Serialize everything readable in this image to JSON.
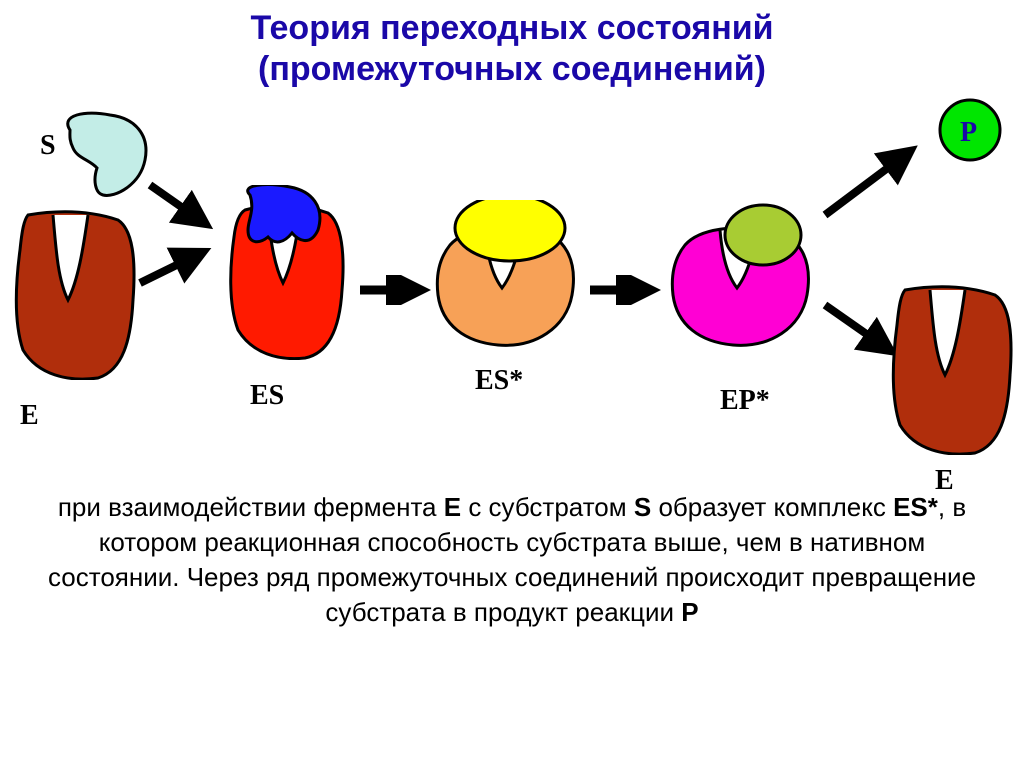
{
  "title": {
    "line1": "Теория переходных состояний",
    "line2": "(промежуточных соединений)",
    "color": "#1a08a8",
    "fontsize": 34
  },
  "labels": {
    "S": "S",
    "E1": "E",
    "ES": "ES",
    "ESstar": "ES*",
    "EPstar": "EP*",
    "E2": "E",
    "P": "P",
    "fontsize": 28,
    "color": "#000000"
  },
  "shapes": {
    "enzyme_brown": "#b02e0c",
    "enzyme_red": "#ff1a00",
    "enzyme_orange": "#f7a157",
    "enzyme_magenta": "#ff00d4",
    "substrate_cyan": "#c3ede7",
    "substrate_blue": "#1a1aff",
    "substrate_yellow": "#ffff00",
    "substrate_olive": "#a8cc33",
    "product_green": "#00e600",
    "stroke": "#000000"
  },
  "arrows": {
    "color": "#000000",
    "stroke_width": 8
  },
  "description": {
    "text_parts": [
      "при взаимодействии фермента ",
      "E",
      " с субстратом ",
      "S",
      "  образует комплекс ",
      "ES*",
      ", в котором реакционная способность субстрата выше, чем в нативном состоянии. Через ряд промежуточных соединений происходит превращение субстрата в продукт реакции ",
      "P"
    ],
    "bold_indices": [
      1,
      3,
      5,
      7
    ],
    "color": "#000000",
    "fontsize": 26
  },
  "background": "#ffffff"
}
